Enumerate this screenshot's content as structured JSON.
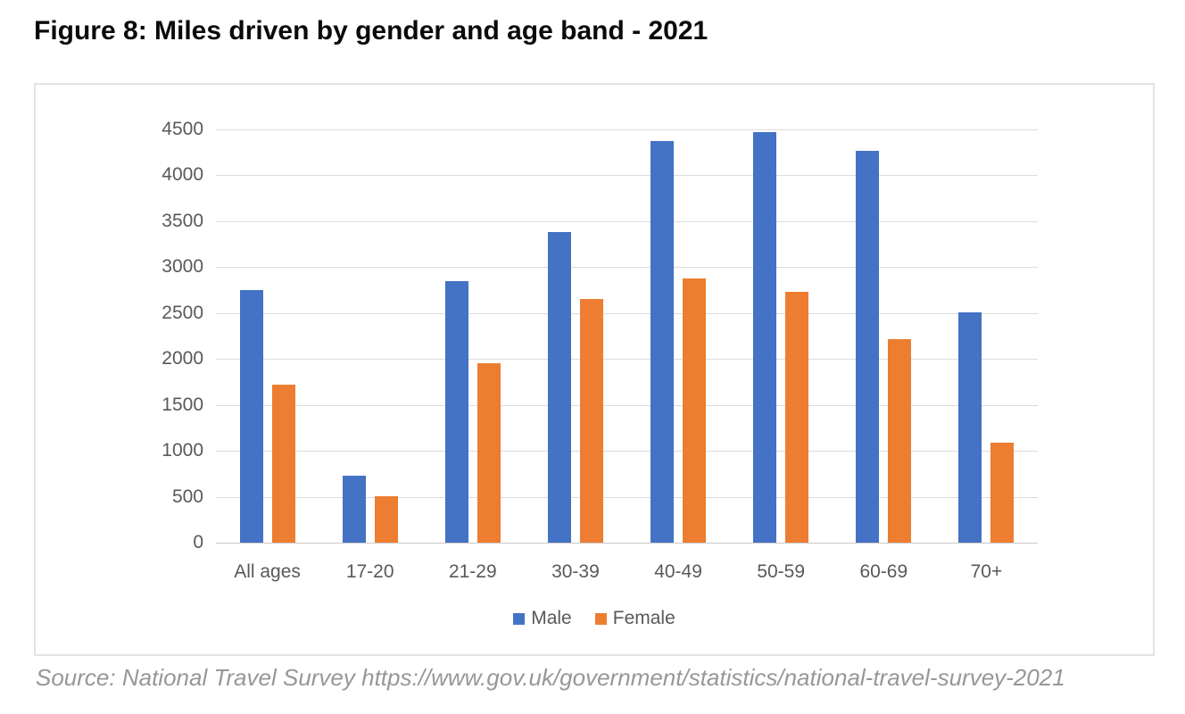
{
  "title": "Figure 8: Miles driven by gender and age band - 2021",
  "source_note": "Source: National Travel Survey https://www.gov.uk/government/statistics/national-travel-survey-2021",
  "chart_data": {
    "type": "bar",
    "title": "Figure 8: Miles driven by gender and age band - 2021",
    "categories": [
      "All ages",
      "17-20",
      "21-29",
      "30-39",
      "40-49",
      "50-59",
      "60-69",
      "70+"
    ],
    "series": [
      {
        "name": "Male",
        "color": "#4472C4",
        "values": [
          2750,
          730,
          2850,
          3380,
          4370,
          4470,
          4270,
          2510
        ]
      },
      {
        "name": "Female",
        "color": "#ED7D31",
        "values": [
          1720,
          510,
          1950,
          2650,
          2880,
          2730,
          2220,
          1090
        ]
      }
    ],
    "xlabel": "",
    "ylabel": "",
    "ylim": [
      0,
      4500
    ],
    "ytick_step": 500,
    "grid": true,
    "legend_position": "bottom"
  }
}
